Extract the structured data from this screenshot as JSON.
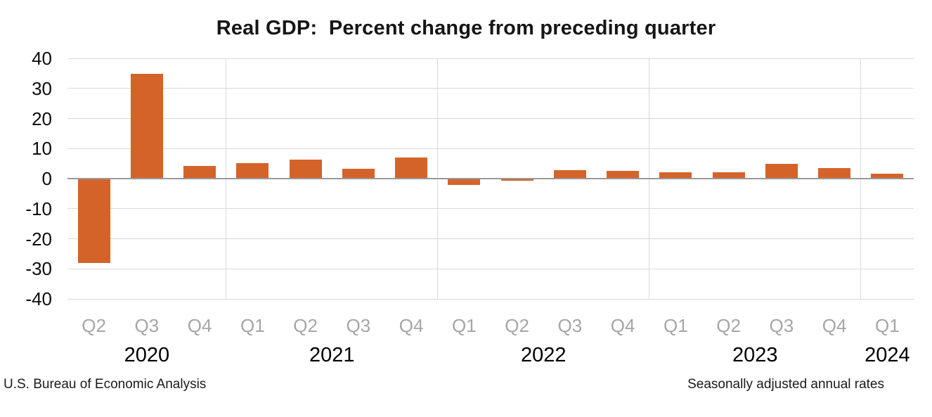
{
  "title": "Real GDP:  Percent change from preceding quarter",
  "footer": {
    "left": "U.S. Bureau of Economic Analysis",
    "right": "Seasonally adjusted annual rates"
  },
  "colors": {
    "bar": "#d4632a",
    "gridline": "#d9d9d9",
    "zero_line": "#999999",
    "quarter_label": "#a6a6a6",
    "year_label": "#000000",
    "tick_label": "#0d0d0d"
  },
  "chart_data": {
    "type": "bar",
    "title": "Real GDP:  Percent change from preceding quarter",
    "xlabel": "",
    "ylabel": "",
    "ylim": [
      -40,
      40
    ],
    "yticks": [
      40,
      30,
      20,
      10,
      0,
      -10,
      -20,
      -30,
      -40
    ],
    "grid": true,
    "legend": false,
    "bar_color": "#d4632a",
    "categories": [
      "2020 Q2",
      "2020 Q3",
      "2020 Q4",
      "2021 Q1",
      "2021 Q2",
      "2021 Q3",
      "2021 Q4",
      "2022 Q1",
      "2022 Q2",
      "2022 Q3",
      "2022 Q4",
      "2023 Q1",
      "2023 Q2",
      "2023 Q3",
      "2023 Q4",
      "2024 Q1"
    ],
    "quarters": [
      "Q2",
      "Q3",
      "Q4",
      "Q1",
      "Q2",
      "Q3",
      "Q4",
      "Q1",
      "Q2",
      "Q3",
      "Q4",
      "Q1",
      "Q2",
      "Q3",
      "Q4",
      "Q1"
    ],
    "values": [
      -28.0,
      34.8,
      4.2,
      5.2,
      6.2,
      3.3,
      7.0,
      -2.0,
      -0.6,
      2.7,
      2.6,
      2.2,
      2.1,
      4.9,
      3.4,
      1.6
    ],
    "years": [
      {
        "label": "2020",
        "start": 0,
        "count": 3
      },
      {
        "label": "2021",
        "start": 3,
        "count": 4
      },
      {
        "label": "2022",
        "start": 7,
        "count": 4
      },
      {
        "label": "2023",
        "start": 11,
        "count": 4
      },
      {
        "label": "2024",
        "start": 15,
        "count": 1
      }
    ],
    "source": "U.S. Bureau of Economic Analysis",
    "note": "Seasonally adjusted annual rates"
  }
}
